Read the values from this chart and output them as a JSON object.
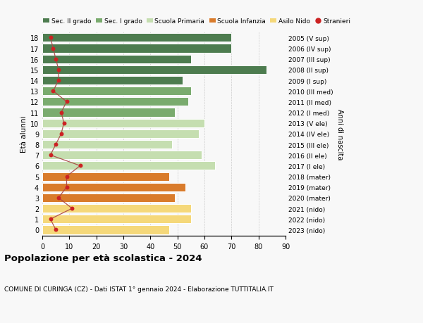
{
  "ages": [
    18,
    17,
    16,
    15,
    14,
    13,
    12,
    11,
    10,
    9,
    8,
    7,
    6,
    5,
    4,
    3,
    2,
    1,
    0
  ],
  "bar_values": [
    70,
    70,
    55,
    83,
    52,
    55,
    54,
    49,
    60,
    58,
    48,
    59,
    64,
    47,
    53,
    49,
    55,
    55,
    47
  ],
  "stranieri": [
    3,
    4,
    5,
    6,
    6,
    4,
    9,
    7,
    8,
    7,
    5,
    3,
    14,
    9,
    9,
    6,
    11,
    3,
    5
  ],
  "right_labels": [
    "2005 (V sup)",
    "2006 (IV sup)",
    "2007 (III sup)",
    "2008 (II sup)",
    "2009 (I sup)",
    "2010 (III med)",
    "2011 (II med)",
    "2012 (I med)",
    "2013 (V ele)",
    "2014 (IV ele)",
    "2015 (III ele)",
    "2016 (II ele)",
    "2017 (I ele)",
    "2018 (mater)",
    "2019 (mater)",
    "2020 (mater)",
    "2021 (nido)",
    "2022 (nido)",
    "2023 (nido)"
  ],
  "bar_colors": [
    "#4d7c4f",
    "#4d7c4f",
    "#4d7c4f",
    "#4d7c4f",
    "#4d7c4f",
    "#7aab6e",
    "#7aab6e",
    "#7aab6e",
    "#c5deb0",
    "#c5deb0",
    "#c5deb0",
    "#c5deb0",
    "#c5deb0",
    "#d97b2b",
    "#d97b2b",
    "#d97b2b",
    "#f5d87a",
    "#f5d87a",
    "#f5d87a"
  ],
  "legend_labels": [
    "Sec. II grado",
    "Sec. I grado",
    "Scuola Primaria",
    "Scuola Infanzia",
    "Asilo Nido",
    "Stranieri"
  ],
  "legend_colors": [
    "#4d7c4f",
    "#7aab6e",
    "#c5deb0",
    "#d97b2b",
    "#f5d87a",
    "#cc2222"
  ],
  "stranieri_color": "#cc2222",
  "stranieri_line_color": "#aa4444",
  "title": "Popolazione per età scolastica - 2024",
  "subtitle": "COMUNE DI CURINGA (CZ) - Dati ISTAT 1° gennaio 2024 - Elaborazione TUTTITALIA.IT",
  "ylabel": "Età alunni",
  "right_ylabel": "Anni di nascita",
  "xlim": [
    0,
    90
  ],
  "xticks": [
    0,
    10,
    20,
    30,
    40,
    50,
    60,
    70,
    80,
    90
  ],
  "background_color": "#f8f8f8",
  "grid_color": "#cccccc"
}
